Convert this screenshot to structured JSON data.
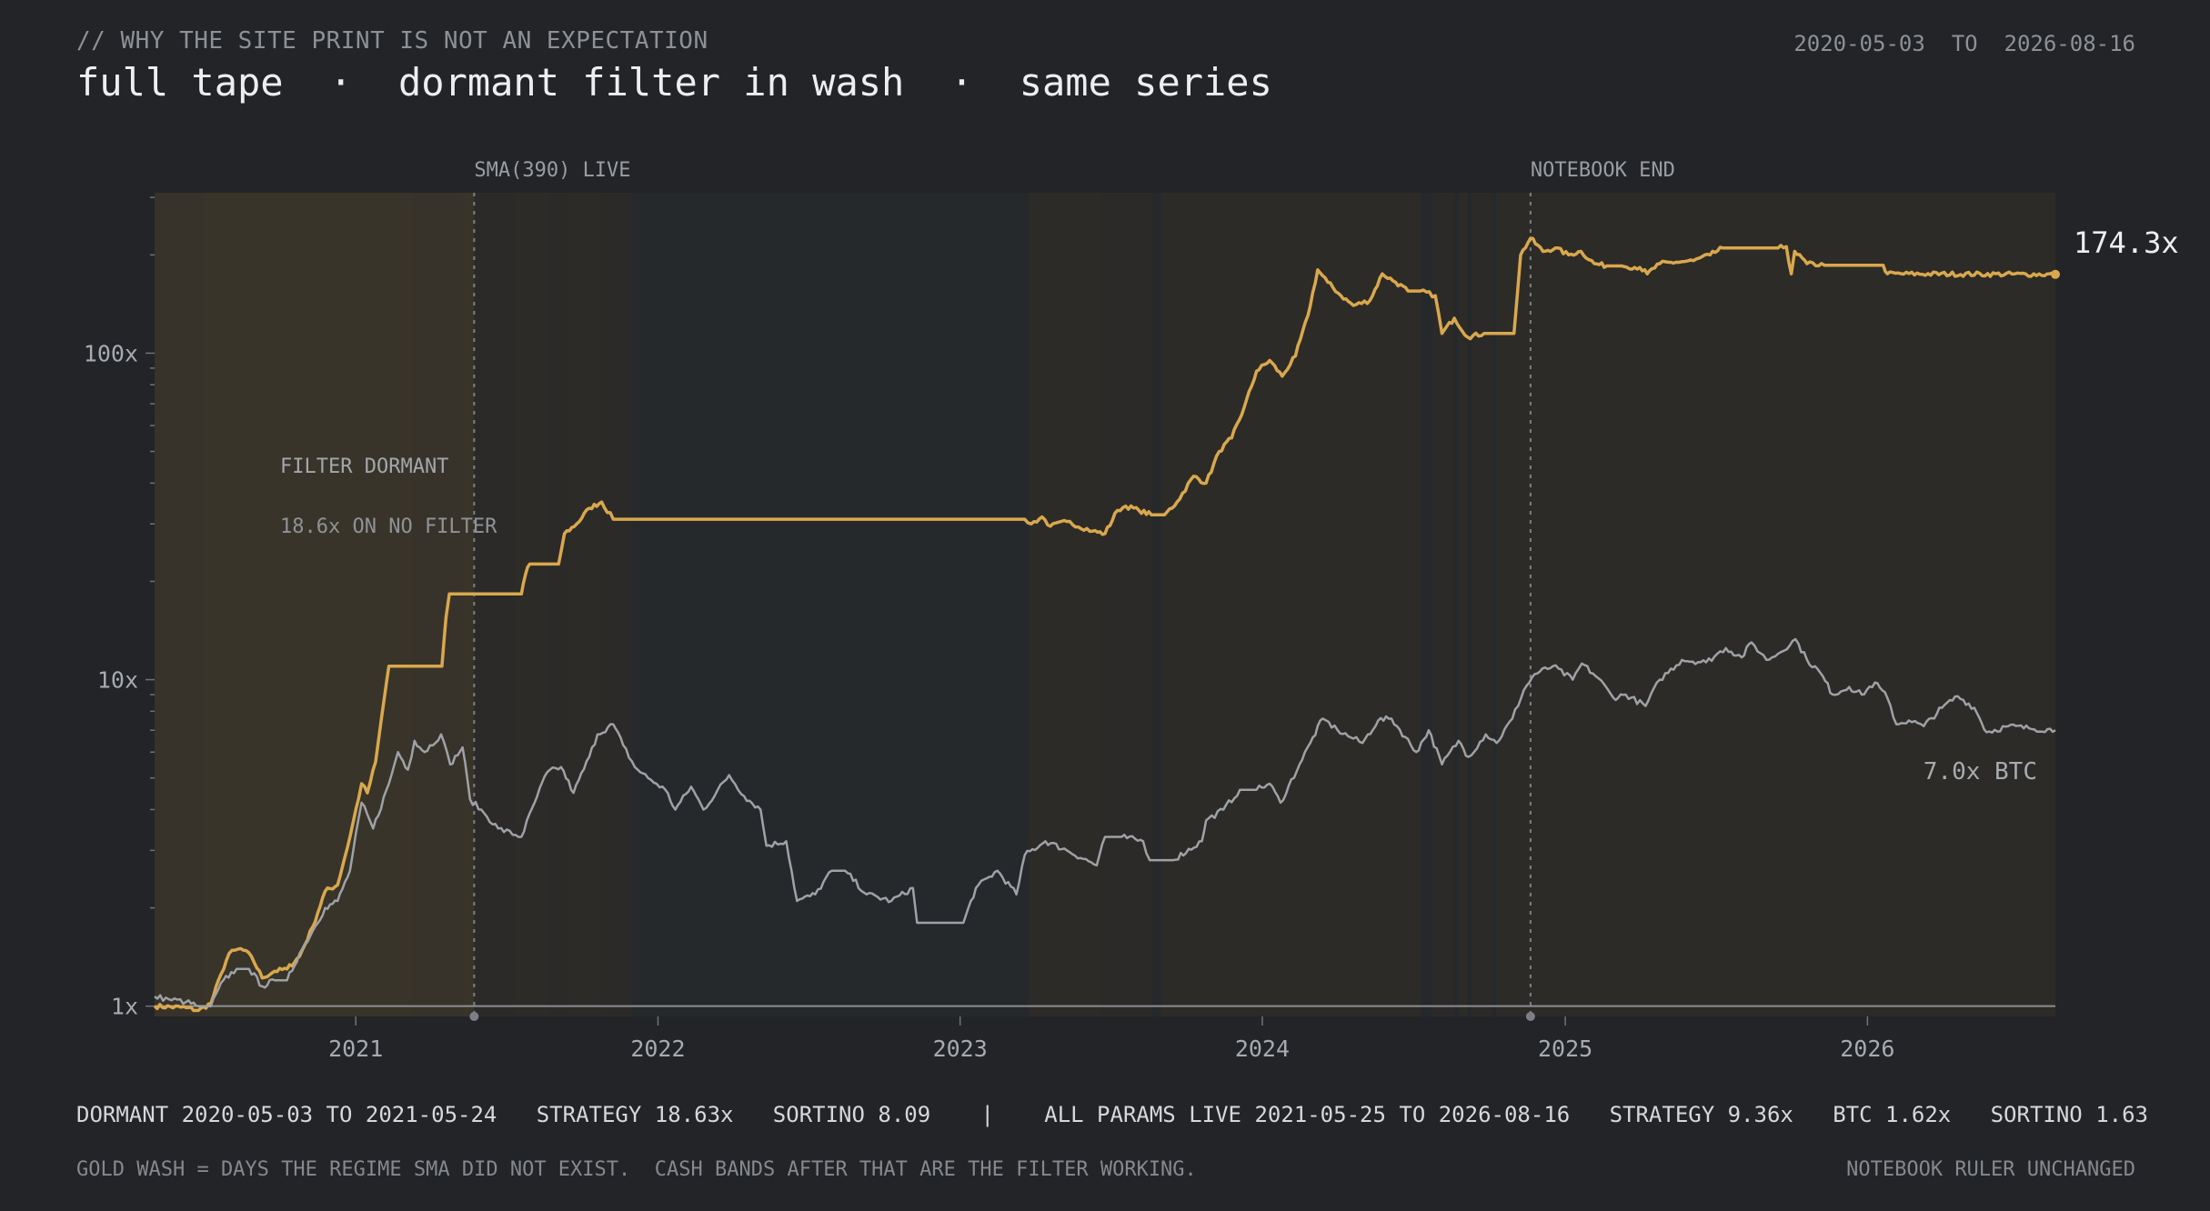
{
  "header": {
    "kicker": "// WHY THE SITE PRINT IS NOT AN EXPECTATION",
    "title": "full tape  ·  dormant filter in wash  ·  same series",
    "date_range": "2020-05-03  TO  2026-08-16"
  },
  "colors": {
    "background": "#222427",
    "strategy": "#d9a84e",
    "btc": "#9ea2a7",
    "dormant_wash": "#b58f42",
    "live_band": "#2f2b27"
  },
  "chart_data": {
    "type": "line",
    "y_scale": "log",
    "x_range": [
      "2020-05-03",
      "2026-08-16"
    ],
    "y_range": [
      0.93,
      310
    ],
    "y_ticks": [
      {
        "value": 1,
        "label": "1x"
      },
      {
        "value": 10,
        "label": "10x"
      },
      {
        "value": 100,
        "label": "100x"
      }
    ],
    "x_ticks": [
      {
        "date": "2021-01-01",
        "label": "2021"
      },
      {
        "date": "2022-01-01",
        "label": "2022"
      },
      {
        "date": "2023-01-01",
        "label": "2023"
      },
      {
        "date": "2024-01-01",
        "label": "2024"
      },
      {
        "date": "2025-01-01",
        "label": "2025"
      },
      {
        "date": "2026-01-01",
        "label": "2026"
      }
    ],
    "baseline": 1,
    "markers": [
      {
        "date": "2021-05-24",
        "label": "SMA(390) LIVE"
      },
      {
        "date": "2024-11-20",
        "label": "NOTEBOOK END"
      }
    ],
    "dormant_period": [
      "2020-05-03",
      "2021-05-24"
    ],
    "annotations": {
      "filter_dormant": "FILTER DORMANT",
      "no_filter": "18.6x ON NO FILTER"
    },
    "exposure_bands": [
      [
        "2020-05-03",
        "2020-07-01"
      ],
      [
        "2020-07-01",
        "2021-03-10"
      ],
      [
        "2021-03-10",
        "2021-05-10"
      ],
      [
        "2021-05-10",
        "2021-05-24"
      ],
      [
        "2021-05-24",
        "2021-07-10"
      ],
      [
        "2021-07-10",
        "2021-08-20"
      ],
      [
        "2021-08-20",
        "2021-09-15"
      ],
      [
        "2021-09-15",
        "2021-10-25"
      ],
      [
        "2021-10-25",
        "2021-12-01"
      ],
      [
        "2023-03-25",
        "2023-06-20"
      ],
      [
        "2023-06-20",
        "2023-08-20"
      ],
      [
        "2023-09-01",
        "2024-07-10"
      ],
      [
        "2024-07-25",
        "2024-08-20"
      ],
      [
        "2024-08-25",
        "2024-09-05"
      ],
      [
        "2024-09-10",
        "2024-10-05"
      ],
      [
        "2024-10-10",
        "2026-08-16"
      ]
    ],
    "series": [
      {
        "name": "",
        "role": "strategy",
        "end_label": "174.3x",
        "points": [
          [
            "2020-05-03",
            1.0
          ],
          [
            "2020-06-10",
            0.99
          ],
          [
            "2020-06-25",
            0.97
          ],
          [
            "2020-07-10",
            1.02
          ],
          [
            "2020-07-22",
            1.25
          ],
          [
            "2020-08-01",
            1.45
          ],
          [
            "2020-08-15",
            1.5
          ],
          [
            "2020-08-28",
            1.42
          ],
          [
            "2020-09-10",
            1.22
          ],
          [
            "2020-09-25",
            1.28
          ],
          [
            "2020-10-10",
            1.3
          ],
          [
            "2020-10-25",
            1.42
          ],
          [
            "2020-11-10",
            1.75
          ],
          [
            "2020-11-25",
            2.25
          ],
          [
            "2020-12-10",
            2.35
          ],
          [
            "2020-12-25",
            3.3
          ],
          [
            "2021-01-08",
            4.8
          ],
          [
            "2021-01-15",
            4.5
          ],
          [
            "2021-01-25",
            5.6
          ],
          [
            "2021-02-05",
            9.0
          ],
          [
            "2021-02-10",
            11.0
          ],
          [
            "2021-04-15",
            11.0
          ],
          [
            "2021-04-20",
            15.5
          ],
          [
            "2021-04-24",
            18.3
          ],
          [
            "2021-07-20",
            18.3
          ],
          [
            "2021-07-25",
            21.0
          ],
          [
            "2021-07-30",
            22.6
          ],
          [
            "2021-09-03",
            22.6
          ],
          [
            "2021-09-10",
            28.0
          ],
          [
            "2021-09-25",
            30.0
          ],
          [
            "2021-10-10",
            33.5
          ],
          [
            "2021-10-25",
            35.0
          ],
          [
            "2021-11-08",
            31.0
          ],
          [
            "2021-11-15",
            31.0
          ],
          [
            "2023-03-20",
            31.0
          ],
          [
            "2023-03-28",
            30.0
          ],
          [
            "2023-04-10",
            31.5
          ],
          [
            "2023-04-20",
            29.5
          ],
          [
            "2023-05-10",
            30.5
          ],
          [
            "2023-06-10",
            28.5
          ],
          [
            "2023-06-25",
            28.0
          ],
          [
            "2023-07-10",
            33.0
          ],
          [
            "2023-07-20",
            34.0
          ],
          [
            "2023-08-05",
            33.0
          ],
          [
            "2023-08-20",
            32.0
          ],
          [
            "2023-09-05",
            32.0
          ],
          [
            "2023-09-20",
            35.0
          ],
          [
            "2023-10-10",
            42.0
          ],
          [
            "2023-10-25",
            40.0
          ],
          [
            "2023-11-10",
            50.0
          ],
          [
            "2023-11-25",
            55.0
          ],
          [
            "2023-12-10",
            68.0
          ],
          [
            "2023-12-25",
            88.0
          ],
          [
            "2024-01-10",
            95.0
          ],
          [
            "2024-01-25",
            85.0
          ],
          [
            "2024-02-10",
            98.0
          ],
          [
            "2024-02-25",
            130.0
          ],
          [
            "2024-03-08",
            180.0
          ],
          [
            "2024-03-20",
            165.0
          ],
          [
            "2024-04-05",
            150.0
          ],
          [
            "2024-04-20",
            140.0
          ],
          [
            "2024-05-10",
            145.0
          ],
          [
            "2024-05-25",
            175.0
          ],
          [
            "2024-06-10",
            165.0
          ],
          [
            "2024-06-25",
            155.0
          ],
          [
            "2024-07-10",
            155.0
          ],
          [
            "2024-07-28",
            150.0
          ],
          [
            "2024-08-05",
            115.0
          ],
          [
            "2024-08-20",
            128.0
          ],
          [
            "2024-09-05",
            112.0
          ],
          [
            "2024-09-25",
            115.0
          ],
          [
            "2024-10-20",
            115.0
          ],
          [
            "2024-10-31",
            115.0
          ],
          [
            "2024-11-08",
            200.0
          ],
          [
            "2024-11-20",
            225.0
          ],
          [
            "2024-12-05",
            205.0
          ],
          [
            "2024-12-20",
            210.0
          ],
          [
            "2025-01-05",
            200.0
          ],
          [
            "2025-01-20",
            205.0
          ],
          [
            "2025-02-05",
            188.0
          ],
          [
            "2025-02-20",
            185.0
          ],
          [
            "2025-03-10",
            185.0
          ],
          [
            "2025-04-01",
            183.0
          ],
          [
            "2025-04-10",
            175.0
          ],
          [
            "2025-04-25",
            188.0
          ],
          [
            "2025-05-15",
            190.0
          ],
          [
            "2025-06-05",
            192.0
          ],
          [
            "2025-06-25",
            200.0
          ],
          [
            "2025-07-10",
            210.0
          ],
          [
            "2025-08-10",
            210.0
          ],
          [
            "2025-09-15",
            210.0
          ],
          [
            "2025-09-25",
            212.0
          ],
          [
            "2025-10-01",
            175.0
          ],
          [
            "2025-10-05",
            205.0
          ],
          [
            "2025-10-20",
            188.0
          ],
          [
            "2025-11-10",
            186.0
          ],
          [
            "2025-12-20",
            186.0
          ],
          [
            "2026-01-20",
            186.0
          ],
          [
            "2026-01-25",
            175.0
          ],
          [
            "2026-08-16",
            174.3
          ]
        ]
      },
      {
        "name": "",
        "role": "btc",
        "end_label": "7.0x  BTC",
        "points": [
          [
            "2020-05-03",
            1.07
          ],
          [
            "2020-05-20",
            1.05
          ],
          [
            "2020-06-10",
            1.03
          ],
          [
            "2020-06-25",
            1.0
          ],
          [
            "2020-07-10",
            1.0
          ],
          [
            "2020-07-25",
            1.2
          ],
          [
            "2020-08-10",
            1.3
          ],
          [
            "2020-08-25",
            1.3
          ],
          [
            "2020-09-10",
            1.15
          ],
          [
            "2020-09-25",
            1.2
          ],
          [
            "2020-10-10",
            1.2
          ],
          [
            "2020-10-25",
            1.45
          ],
          [
            "2020-11-10",
            1.7
          ],
          [
            "2020-11-25",
            2.0
          ],
          [
            "2020-12-10",
            2.1
          ],
          [
            "2020-12-25",
            2.6
          ],
          [
            "2021-01-08",
            4.2
          ],
          [
            "2021-01-22",
            3.5
          ],
          [
            "2021-02-10",
            4.8
          ],
          [
            "2021-02-21",
            6.0
          ],
          [
            "2021-03-05",
            5.3
          ],
          [
            "2021-03-13",
            6.5
          ],
          [
            "2021-03-25",
            6.0
          ],
          [
            "2021-04-14",
            6.8
          ],
          [
            "2021-04-25",
            5.5
          ],
          [
            "2021-05-10",
            6.2
          ],
          [
            "2021-05-19",
            4.3
          ],
          [
            "2021-06-05",
            3.9
          ],
          [
            "2021-06-22",
            3.5
          ],
          [
            "2021-07-20",
            3.3
          ],
          [
            "2021-08-05",
            4.2
          ],
          [
            "2021-08-20",
            5.2
          ],
          [
            "2021-09-06",
            5.4
          ],
          [
            "2021-09-21",
            4.5
          ],
          [
            "2021-10-10",
            5.8
          ],
          [
            "2021-10-20",
            6.8
          ],
          [
            "2021-11-08",
            7.3
          ],
          [
            "2021-11-20",
            6.3
          ],
          [
            "2021-12-04",
            5.4
          ],
          [
            "2021-12-20",
            5.0
          ],
          [
            "2022-01-10",
            4.6
          ],
          [
            "2022-01-22",
            4.0
          ],
          [
            "2022-02-10",
            4.7
          ],
          [
            "2022-02-25",
            4.0
          ],
          [
            "2022-03-28",
            5.1
          ],
          [
            "2022-04-15",
            4.4
          ],
          [
            "2022-05-05",
            4.0
          ],
          [
            "2022-05-12",
            3.1
          ],
          [
            "2022-06-05",
            3.2
          ],
          [
            "2022-06-18",
            2.1
          ],
          [
            "2022-07-10",
            2.2
          ],
          [
            "2022-07-30",
            2.6
          ],
          [
            "2022-08-15",
            2.6
          ],
          [
            "2022-09-10",
            2.2
          ],
          [
            "2022-10-10",
            2.1
          ],
          [
            "2022-11-05",
            2.3
          ],
          [
            "2022-11-10",
            1.8
          ],
          [
            "2022-12-20",
            1.8
          ],
          [
            "2023-01-05",
            1.8
          ],
          [
            "2023-01-20",
            2.3
          ],
          [
            "2023-02-15",
            2.6
          ],
          [
            "2023-03-10",
            2.2
          ],
          [
            "2023-03-20",
            2.9
          ],
          [
            "2023-04-14",
            3.2
          ],
          [
            "2023-05-10",
            3.0
          ],
          [
            "2023-06-15",
            2.7
          ],
          [
            "2023-06-25",
            3.3
          ],
          [
            "2023-07-15",
            3.3
          ],
          [
            "2023-08-10",
            3.2
          ],
          [
            "2023-08-18",
            2.8
          ],
          [
            "2023-09-15",
            2.8
          ],
          [
            "2023-10-20",
            3.2
          ],
          [
            "2023-10-25",
            3.7
          ],
          [
            "2023-11-15",
            4.0
          ],
          [
            "2023-12-05",
            4.6
          ],
          [
            "2023-12-25",
            4.6
          ],
          [
            "2024-01-10",
            4.8
          ],
          [
            "2024-01-23",
            4.2
          ],
          [
            "2024-02-15",
            5.5
          ],
          [
            "2024-02-28",
            6.4
          ],
          [
            "2024-03-14",
            7.6
          ],
          [
            "2024-04-01",
            7.0
          ],
          [
            "2024-04-20",
            6.6
          ],
          [
            "2024-05-01",
            6.4
          ],
          [
            "2024-05-20",
            7.5
          ],
          [
            "2024-06-05",
            7.6
          ],
          [
            "2024-07-05",
            6.0
          ],
          [
            "2024-07-20",
            7.0
          ],
          [
            "2024-08-05",
            5.5
          ],
          [
            "2024-08-25",
            6.5
          ],
          [
            "2024-09-06",
            5.8
          ],
          [
            "2024-09-27",
            6.8
          ],
          [
            "2024-10-10",
            6.4
          ],
          [
            "2024-10-29",
            7.6
          ],
          [
            "2024-11-12",
            9.3
          ],
          [
            "2024-11-25",
            10.4
          ],
          [
            "2024-12-17",
            11.0
          ],
          [
            "2025-01-10",
            10.0
          ],
          [
            "2025-01-21",
            11.2
          ],
          [
            "2025-02-10",
            10.1
          ],
          [
            "2025-02-28",
            8.8
          ],
          [
            "2025-03-15",
            9.0
          ],
          [
            "2025-04-08",
            8.3
          ],
          [
            "2025-04-25",
            10.0
          ],
          [
            "2025-05-22",
            11.5
          ],
          [
            "2025-06-20",
            11.3
          ],
          [
            "2025-07-14",
            12.5
          ],
          [
            "2025-08-02",
            11.7
          ],
          [
            "2025-08-14",
            13.0
          ],
          [
            "2025-09-01",
            11.5
          ],
          [
            "2025-09-15",
            12.0
          ],
          [
            "2025-10-06",
            13.3
          ],
          [
            "2025-10-20",
            11.5
          ],
          [
            "2025-11-05",
            10.5
          ],
          [
            "2025-11-20",
            9.0
          ],
          [
            "2025-12-10",
            9.5
          ],
          [
            "2025-12-25",
            9.0
          ],
          [
            "2026-01-10",
            9.8
          ],
          [
            "2026-01-25",
            8.8
          ],
          [
            "2026-02-05",
            7.3
          ],
          [
            "2026-02-20",
            7.5
          ],
          [
            "2026-03-10",
            7.2
          ],
          [
            "2026-04-01",
            8.2
          ],
          [
            "2026-04-20",
            8.9
          ],
          [
            "2026-05-10",
            8.2
          ],
          [
            "2026-05-25",
            6.9
          ],
          [
            "2026-06-20",
            7.2
          ],
          [
            "2026-07-15",
            7.1
          ],
          [
            "2026-08-16",
            7.0
          ]
        ]
      }
    ]
  },
  "stats": {
    "dormant": "DORMANT 2020-05-03 TO 2021-05-24   STRATEGY 18.63x   SORTINO 8.09",
    "divider": "|",
    "live": "ALL PARAMS LIVE 2021-05-25 TO 2026-08-16   STRATEGY 9.36x   BTC 1.62x   SORTINO 1.63"
  },
  "footer": {
    "left": "GOLD WASH = DAYS THE REGIME SMA DID NOT EXIST.  CASH BANDS AFTER THAT ARE THE FILTER WORKING.",
    "right": "NOTEBOOK RULER UNCHANGED"
  }
}
